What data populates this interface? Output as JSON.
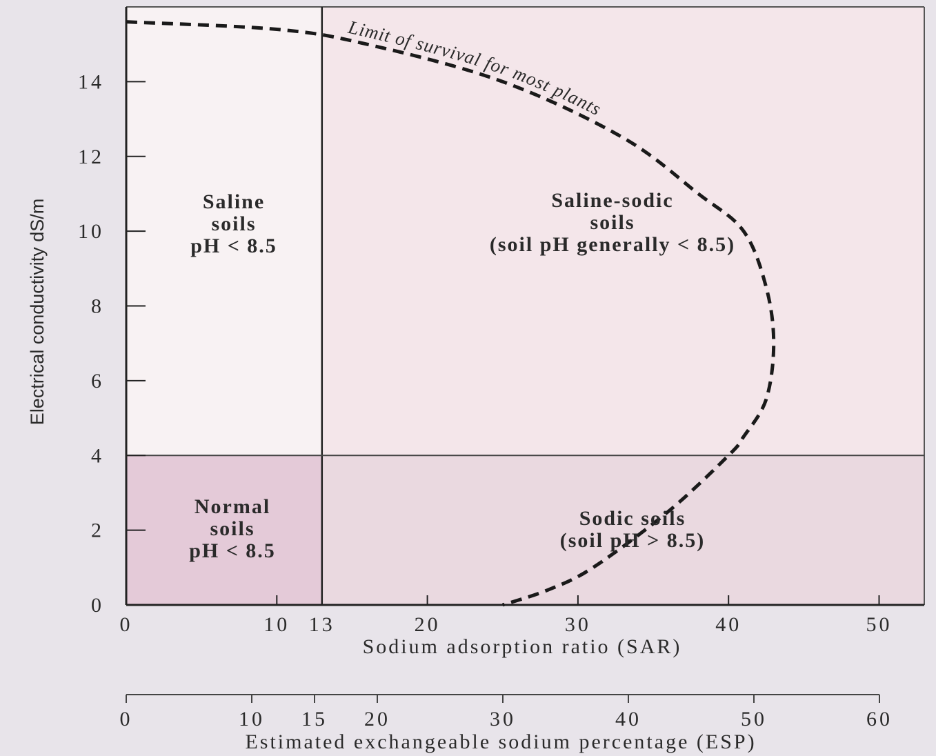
{
  "chart_data": {
    "type": "region-diagram",
    "xlabel": "Sodium adsorption ratio (SAR)",
    "ylabel": "Electrical conductivity dS/m",
    "secondary_xlabel": "Estimated exchangeable sodium percentage (ESP)",
    "x_ticks": [
      {
        "value": 0,
        "label": "0"
      },
      {
        "value": 10,
        "label": "10"
      },
      {
        "value": 13,
        "label": "13"
      },
      {
        "value": 20,
        "label": "20"
      },
      {
        "value": 30,
        "label": "30"
      },
      {
        "value": 40,
        "label": "40"
      },
      {
        "value": 50,
        "label": "50"
      }
    ],
    "y_ticks": [
      {
        "value": 0,
        "label": "0"
      },
      {
        "value": 2,
        "label": "2"
      },
      {
        "value": 4,
        "label": "4"
      },
      {
        "value": 6,
        "label": "6"
      },
      {
        "value": 8,
        "label": "8"
      },
      {
        "value": 10,
        "label": "10"
      },
      {
        "value": 12,
        "label": "12"
      },
      {
        "value": 14,
        "label": "14"
      }
    ],
    "esp_ticks": [
      {
        "value": 0,
        "label": "0"
      },
      {
        "value": 10,
        "label": "10"
      },
      {
        "value": 15,
        "label": "15"
      },
      {
        "value": 20,
        "label": "20"
      },
      {
        "value": 30,
        "label": "30"
      },
      {
        "value": 40,
        "label": "40"
      },
      {
        "value": 50,
        "label": "50"
      },
      {
        "value": 60,
        "label": "60"
      }
    ],
    "xlim": [
      0,
      53
    ],
    "ylim": [
      0,
      16
    ],
    "esp_lim": [
      0,
      60
    ],
    "sar_threshold": 13,
    "ec_threshold": 4,
    "regions": [
      {
        "lines": [
          "Saline",
          "soils",
          "pH < 8.5"
        ],
        "color": "#f8f2f3"
      },
      {
        "lines": [
          "Saline-sodic",
          "soils",
          "(soil pH generally < 8.5)"
        ],
        "color": "#f4e6ea"
      },
      {
        "lines": [
          "Normal",
          "soils",
          "pH < 8.5"
        ],
        "color": "#e4cad8"
      },
      {
        "lines": [
          "Sodic soils",
          "(soil pH > 8.5)"
        ],
        "color": "#ead9e0"
      }
    ],
    "curve": {
      "label": "Limit of survival for most plants",
      "points": [
        [
          0,
          15.6
        ],
        [
          10,
          15.4
        ],
        [
          16,
          15.0
        ],
        [
          25,
          14.0
        ],
        [
          33,
          12.5
        ],
        [
          38,
          11.0
        ],
        [
          41,
          10.0
        ],
        [
          42.5,
          8.5
        ],
        [
          43,
          7.0
        ],
        [
          42.5,
          5.5
        ],
        [
          41,
          4.5
        ],
        [
          40,
          4.0
        ],
        [
          36,
          2.5
        ],
        [
          31,
          1.0
        ],
        [
          28,
          0.4
        ],
        [
          25,
          0
        ]
      ]
    }
  }
}
